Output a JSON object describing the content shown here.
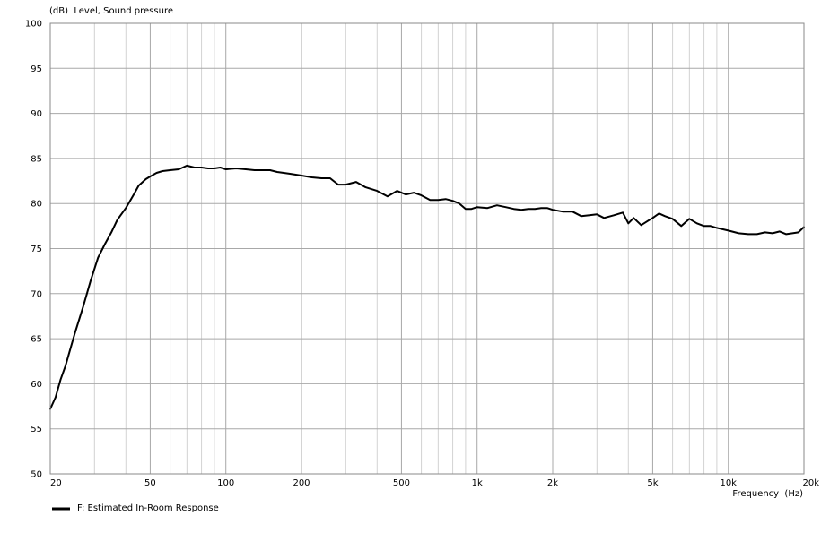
{
  "chart_data": {
    "type": "line",
    "ylabel": "(dB)  Level, Sound pressure",
    "xlabel": "Frequency  (Hz)",
    "x_scale": "log",
    "xlim": [
      20,
      20000
    ],
    "ylim": [
      50,
      100
    ],
    "grid": true,
    "y_ticks": [
      50,
      55,
      60,
      65,
      70,
      75,
      80,
      85,
      90,
      95,
      100
    ],
    "x_ticks": [
      {
        "value": 20,
        "label": "20"
      },
      {
        "value": 50,
        "label": "50"
      },
      {
        "value": 100,
        "label": "100"
      },
      {
        "value": 200,
        "label": "200"
      },
      {
        "value": 500,
        "label": "500"
      },
      {
        "value": 1000,
        "label": "1k"
      },
      {
        "value": 2000,
        "label": "2k"
      },
      {
        "value": 5000,
        "label": "5k"
      },
      {
        "value": 10000,
        "label": "10k"
      },
      {
        "value": 20000,
        "label": "20k"
      }
    ],
    "legend_position": "bottom-left",
    "series": [
      {
        "name": "F: Estimated In-Room Response",
        "color": "#000000",
        "x": [
          20,
          21,
          22,
          23,
          25,
          27,
          29,
          31,
          33,
          35,
          37,
          40,
          43,
          45,
          48,
          50,
          53,
          56,
          60,
          65,
          70,
          75,
          80,
          85,
          90,
          95,
          100,
          110,
          120,
          130,
          140,
          150,
          160,
          170,
          180,
          200,
          220,
          240,
          260,
          280,
          300,
          330,
          360,
          400,
          440,
          480,
          520,
          560,
          600,
          650,
          700,
          750,
          800,
          850,
          900,
          950,
          1000,
          1100,
          1200,
          1300,
          1400,
          1500,
          1600,
          1700,
          1800,
          1900,
          2000,
          2200,
          2400,
          2600,
          2800,
          3000,
          3200,
          3500,
          3800,
          4000,
          4200,
          4500,
          4800,
          5000,
          5300,
          5600,
          6000,
          6500,
          7000,
          7500,
          8000,
          8500,
          9000,
          10000,
          11000,
          12000,
          13000,
          14000,
          15000,
          16000,
          17000,
          18000,
          19000,
          20000
        ],
        "y": [
          57.2,
          58.5,
          60.5,
          62.0,
          65.5,
          68.5,
          71.5,
          74.0,
          75.5,
          76.8,
          78.2,
          79.5,
          81.0,
          82.0,
          82.7,
          83.0,
          83.4,
          83.6,
          83.7,
          83.8,
          84.2,
          84.0,
          84.0,
          83.9,
          83.9,
          84.0,
          83.8,
          83.9,
          83.8,
          83.7,
          83.7,
          83.7,
          83.5,
          83.4,
          83.3,
          83.1,
          82.9,
          82.8,
          82.8,
          82.1,
          82.1,
          82.4,
          81.8,
          81.4,
          80.8,
          81.4,
          81.0,
          81.2,
          80.9,
          80.4,
          80.4,
          80.5,
          80.3,
          80.0,
          79.4,
          79.4,
          79.6,
          79.5,
          79.8,
          79.6,
          79.4,
          79.3,
          79.4,
          79.4,
          79.5,
          79.5,
          79.3,
          79.1,
          79.1,
          78.6,
          78.7,
          78.8,
          78.4,
          78.7,
          79.0,
          77.8,
          78.4,
          77.6,
          78.1,
          78.4,
          78.9,
          78.6,
          78.3,
          77.5,
          78.3,
          77.8,
          77.5,
          77.5,
          77.3,
          77.0,
          76.7,
          76.6,
          76.6,
          76.8,
          76.7,
          76.9,
          76.6,
          76.7,
          76.8,
          77.4
        ]
      }
    ]
  }
}
